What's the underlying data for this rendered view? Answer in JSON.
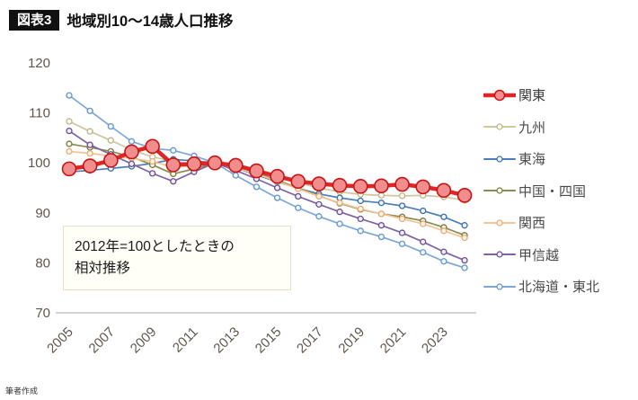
{
  "header": {
    "badge": "図表3",
    "title": "地域別10〜14歳人口推移"
  },
  "annotation": {
    "line1": "2012年=100としたときの",
    "line2": "相対推移"
  },
  "footer": {
    "credit": "筆者作成"
  },
  "chart_data": {
    "type": "line",
    "title": "地域別10〜14歳人口推移",
    "note": "2012年=100としたときの相対推移 (index, 2012=100)",
    "x": [
      2005,
      2006,
      2007,
      2008,
      2009,
      2010,
      2011,
      2012,
      2013,
      2014,
      2015,
      2016,
      2017,
      2018,
      2019,
      2020,
      2021,
      2022,
      2023,
      2024
    ],
    "x_tick_labels": [
      "2005",
      "2007",
      "2009",
      "2011",
      "2013",
      "2015",
      "2017",
      "2019",
      "2021",
      "2023"
    ],
    "ylim": [
      70,
      120
    ],
    "y_ticks": [
      70,
      80,
      90,
      100,
      110,
      120
    ],
    "grid": false,
    "legend_position": "right",
    "axis_color": "#c6c6c6",
    "tick_label_color": "#5f574c",
    "series": [
      {
        "name": "関東",
        "color": "#e02525",
        "marker_fill": "#f28d8d",
        "marker_stroke": "#c41414",
        "line_width": 4.5,
        "marker_r": 7.5,
        "values": [
          98.8,
          99.4,
          100.5,
          102.2,
          103.3,
          99.6,
          99.8,
          100,
          99.5,
          98.4,
          97.3,
          96.3,
          95.8,
          95.5,
          95.3,
          95.4,
          95.7,
          95.2,
          94.5,
          93.5
        ]
      },
      {
        "name": "九州",
        "color": "#cfc79e",
        "marker_fill": "#fdfdf5",
        "marker_stroke": "#bdb488",
        "line_width": 1.7,
        "marker_r": 3,
        "values": [
          108.3,
          106.3,
          104.5,
          102.6,
          101.2,
          100.3,
          99.8,
          100,
          99.4,
          98.4,
          97.2,
          96.0,
          95.0,
          94.2,
          93.7,
          93.5,
          93.4,
          93.5,
          93.2,
          92.5
        ]
      },
      {
        "name": "東海",
        "color": "#4a7ebb",
        "marker_fill": "#eef4fb",
        "marker_stroke": "#3d6da6",
        "line_width": 1.7,
        "marker_r": 3,
        "values": [
          98.2,
          98.5,
          98.9,
          99.3,
          99.9,
          100.7,
          100.4,
          100,
          99.0,
          97.6,
          96.2,
          94.9,
          93.8,
          93.0,
          92.4,
          92.0,
          91.4,
          90.4,
          89.2,
          87.5
        ]
      },
      {
        "name": "中国・四国",
        "color": "#8c8c51",
        "marker_fill": "#f4f4e8",
        "marker_stroke": "#77773f",
        "line_width": 1.7,
        "marker_r": 3,
        "values": [
          103.8,
          103.1,
          102.3,
          101.2,
          99.6,
          97.8,
          98.8,
          100,
          99.2,
          98.0,
          96.5,
          95.0,
          93.4,
          91.9,
          90.7,
          89.8,
          89.2,
          88.4,
          87.1,
          85.5
        ]
      },
      {
        "name": "関西",
        "color": "#f5c396",
        "marker_fill": "#fdf3e7",
        "marker_stroke": "#e8ab72",
        "line_width": 1.7,
        "marker_r": 3,
        "values": [
          102.3,
          101.9,
          101.4,
          100.9,
          100.3,
          99.1,
          99.4,
          100,
          99.0,
          97.8,
          96.3,
          94.8,
          93.3,
          92.0,
          90.8,
          89.8,
          88.8,
          87.8,
          86.4,
          85.0
        ]
      },
      {
        "name": "甲信越",
        "color": "#8064a2",
        "marker_fill": "#f0ecf5",
        "marker_stroke": "#6a4f8e",
        "line_width": 1.7,
        "marker_r": 3,
        "values": [
          106.4,
          103.6,
          101.7,
          99.8,
          97.9,
          96.3,
          98.2,
          100,
          98.5,
          96.8,
          95.0,
          93.3,
          91.7,
          90.2,
          88.8,
          87.5,
          86.0,
          84.2,
          82.2,
          80.5
        ]
      },
      {
        "name": "北海道・東北",
        "color": "#7ba7d7",
        "marker_fill": "#f0f6fc",
        "marker_stroke": "#6596c9",
        "line_width": 1.7,
        "marker_r": 3,
        "values": [
          113.5,
          110.4,
          107.3,
          104.3,
          102.9,
          102.5,
          101.4,
          100,
          97.5,
          95.2,
          93.0,
          91.0,
          89.3,
          87.8,
          86.4,
          85.2,
          83.8,
          82.1,
          80.3,
          79.0
        ]
      }
    ]
  }
}
